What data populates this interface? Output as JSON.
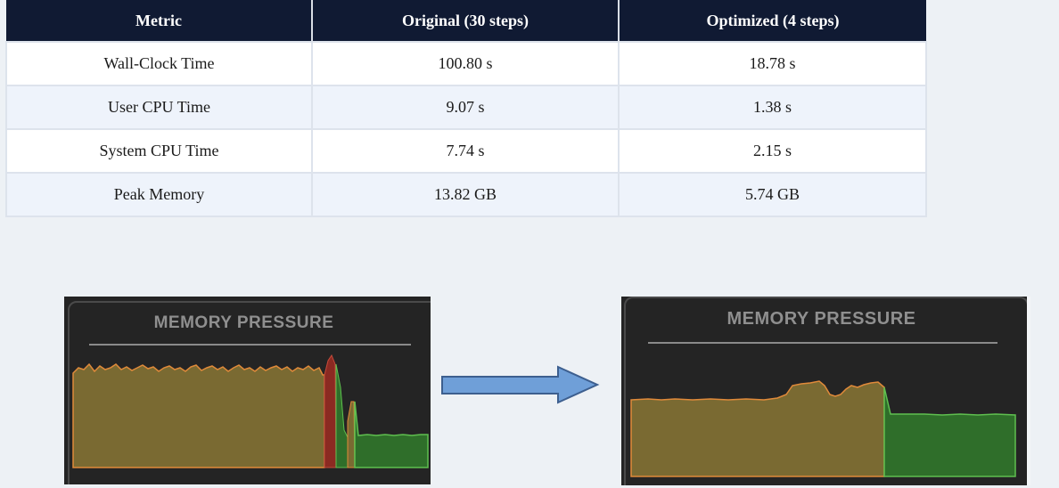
{
  "table": {
    "headers": [
      "Metric",
      "Original (30 steps)",
      "Optimized (4 steps)"
    ],
    "rows": [
      [
        "Wall-Clock Time",
        "100.80 s",
        "18.78 s"
      ],
      [
        "User CPU Time",
        "9.07 s",
        "1.38 s"
      ],
      [
        "System CPU Time",
        "7.74 s",
        "2.15 s"
      ],
      [
        "Peak Memory",
        "13.82 GB",
        "5.74 GB"
      ]
    ]
  },
  "panels": {
    "left": {
      "title": "MEMORY PRESSURE"
    },
    "right": {
      "title": "MEMORY PRESSURE"
    }
  },
  "colors": {
    "header_bg": "#101a33",
    "row_alt_bg": "#eef3fb",
    "panel_bg": "#242424",
    "pressure_yellow": "#7a6a32",
    "pressure_yellow_stroke": "#e08a3a",
    "pressure_red": "#8b2a22",
    "pressure_green": "#2f6e2a",
    "pressure_green_stroke": "#5fbf4f",
    "arrow_fill": "#6f9fd8",
    "arrow_stroke": "#3d5f8f"
  }
}
